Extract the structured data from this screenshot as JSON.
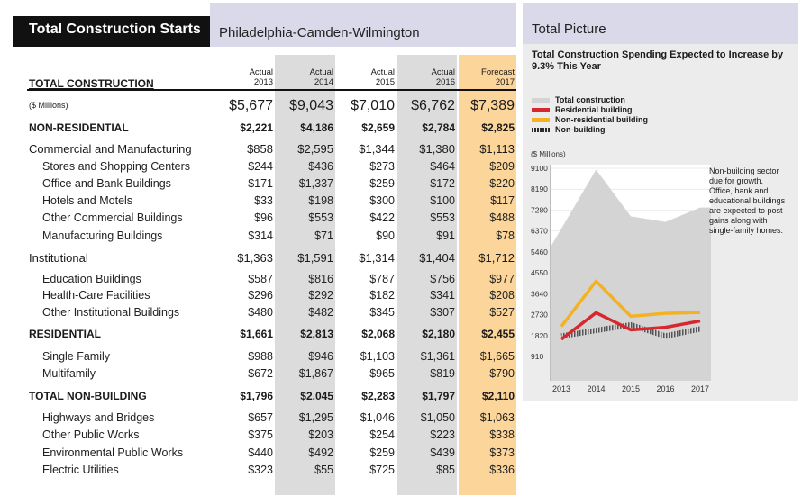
{
  "header": {
    "title": "Total Construction Starts",
    "region": "Philadelphia-Camden-Wilmington"
  },
  "table": {
    "section_label": "TOTAL CONSTRUCTION",
    "columns": [
      {
        "line1": "Actual",
        "line2": "2013"
      },
      {
        "line1": "Actual",
        "line2": "2014"
      },
      {
        "line1": "Actual",
        "line2": "2015"
      },
      {
        "line1": "Actual",
        "line2": "2016"
      },
      {
        "line1": "Forecast",
        "line2": "2017"
      }
    ],
    "rows": [
      {
        "label": "($ Millions)",
        "style": "millions",
        "values": [
          "$5,677",
          "$9,043",
          "$7,010",
          "$6,762",
          "$7,389"
        ]
      },
      {
        "label": "NON-RESIDENTIAL",
        "style": "bold",
        "values": [
          "$2,221",
          "$4,186",
          "$2,659",
          "$2,784",
          "$2,825"
        ]
      },
      {
        "label": "Commercial and Manufacturing",
        "style": "cat",
        "values": [
          "$858",
          "$2,595",
          "$1,344",
          "$1,380",
          "$1,113"
        ]
      },
      {
        "label": "Stores and Shopping Centers",
        "style": "sub",
        "values": [
          "$244",
          "$436",
          "$273",
          "$464",
          "$209"
        ]
      },
      {
        "label": "Office and Bank Buildings",
        "style": "sub",
        "values": [
          "$171",
          "$1,337",
          "$259",
          "$172",
          "$220"
        ]
      },
      {
        "label": "Hotels and Motels",
        "style": "sub",
        "values": [
          "$33",
          "$198",
          "$300",
          "$100",
          "$117"
        ]
      },
      {
        "label": "Other Commercial Buildings",
        "style": "sub",
        "values": [
          "$96",
          "$553",
          "$422",
          "$553",
          "$488"
        ]
      },
      {
        "label": "Manufacturing Buildings",
        "style": "sub",
        "values": [
          "$314",
          "$71",
          "$90",
          "$91",
          "$78"
        ]
      },
      {
        "label": "Institutional",
        "style": "cat",
        "values": [
          "$1,363",
          "$1,591",
          "$1,314",
          "$1,404",
          "$1,712"
        ]
      },
      {
        "label": "Education Buildings",
        "style": "sub",
        "values": [
          "$587",
          "$816",
          "$787",
          "$756",
          "$977"
        ]
      },
      {
        "label": "Health-Care Facilities",
        "style": "sub",
        "values": [
          "$296",
          "$292",
          "$182",
          "$341",
          "$208"
        ]
      },
      {
        "label": "Other Institutional Buildings",
        "style": "sub",
        "values": [
          "$480",
          "$482",
          "$345",
          "$307",
          "$527"
        ]
      },
      {
        "label": "RESIDENTIAL",
        "style": "bold",
        "values": [
          "$1,661",
          "$2,813",
          "$2,068",
          "$2,180",
          "$2,455"
        ]
      },
      {
        "label": "Single Family",
        "style": "sub",
        "values": [
          "$988",
          "$946",
          "$1,103",
          "$1,361",
          "$1,665"
        ]
      },
      {
        "label": "Multifamily",
        "style": "sub",
        "values": [
          "$672",
          "$1,867",
          "$965",
          "$819",
          "$790"
        ]
      },
      {
        "label": "TOTAL NON-BUILDING",
        "style": "bold",
        "values": [
          "$1,796",
          "$2,045",
          "$2,283",
          "$1,797",
          "$2,110"
        ]
      },
      {
        "label": "Highways and Bridges",
        "style": "sub",
        "values": [
          "$657",
          "$1,295",
          "$1,046",
          "$1,050",
          "$1,063"
        ]
      },
      {
        "label": "Other Public Works",
        "style": "sub",
        "values": [
          "$375",
          "$203",
          "$254",
          "$223",
          "$338"
        ]
      },
      {
        "label": "Environmental Public Works",
        "style": "sub",
        "values": [
          "$440",
          "$492",
          "$259",
          "$439",
          "$373"
        ]
      },
      {
        "label": "Electric Utilities",
        "style": "sub",
        "values": [
          "$323",
          "$55",
          "$725",
          "$85",
          "$336"
        ]
      }
    ]
  },
  "panel": {
    "title": "Total Picture",
    "subtitle": "Total Construction Spending Expected to Increase by 9.3% This Year",
    "note": "Non-building sector due for growth. Office, bank and educational buildings are expected to post gains along with single-family homes.",
    "units_label": "($ Millions)"
  },
  "colors": {
    "total": "#d4d4d4",
    "residential": "#d7282f",
    "non_residential": "#f4b223",
    "non_building": "#2b2b2b",
    "forecast_column": "#fbd59a",
    "shaded_column": "#dcdcdc"
  },
  "chart_data": {
    "type": "line",
    "x": [
      "2013",
      "2014",
      "2015",
      "2016",
      "2017"
    ],
    "ylim": [
      0,
      9100
    ],
    "yticks": [
      "9100",
      "8190",
      "7280",
      "6370",
      "5460",
      "4550",
      "3640",
      "2730",
      "1820",
      "910"
    ],
    "series": [
      {
        "name": "Total construction",
        "style": "area",
        "values": [
          5677,
          9043,
          7010,
          6762,
          7389
        ]
      },
      {
        "name": "Residential building",
        "style": "line",
        "values": [
          1661,
          2813,
          2068,
          2180,
          2455
        ]
      },
      {
        "name": "Non-residential building",
        "style": "line",
        "values": [
          2221,
          4186,
          2659,
          2784,
          2825
        ]
      },
      {
        "name": "Non-building",
        "style": "hatched",
        "values": [
          1796,
          2045,
          2283,
          1797,
          2110
        ]
      }
    ]
  }
}
